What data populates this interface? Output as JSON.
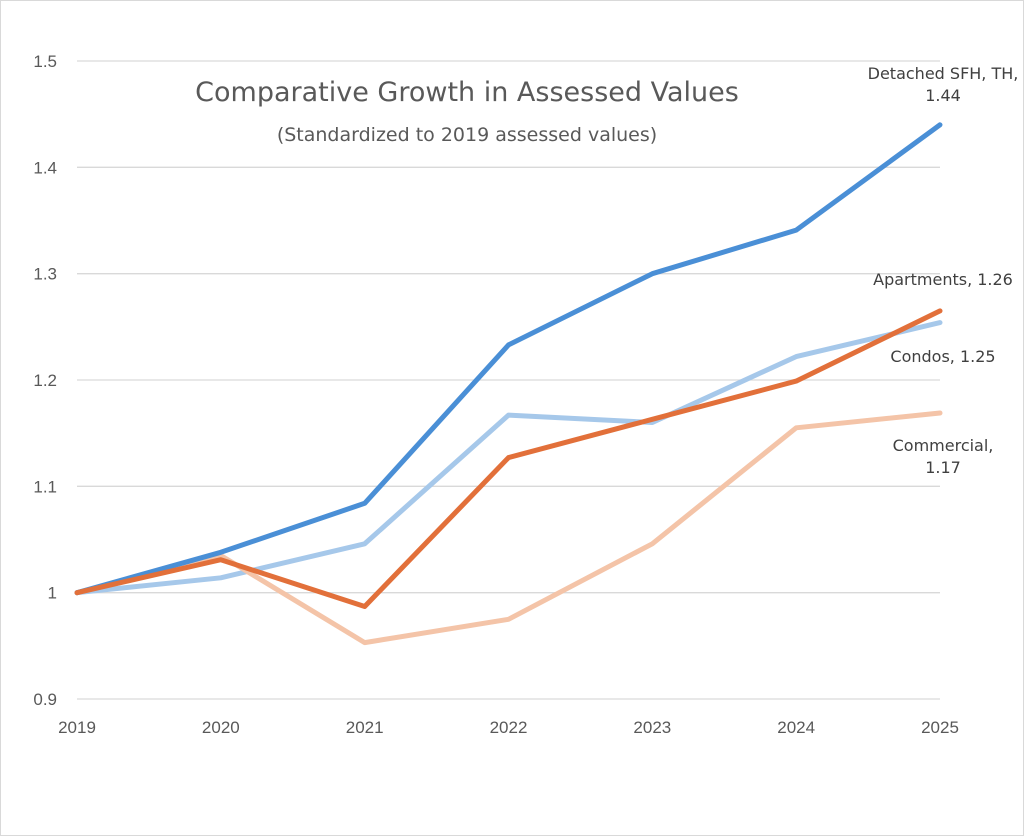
{
  "chart_data": {
    "type": "line",
    "title": "Comparative Growth in Assessed Values",
    "subtitle": "(Standardized to 2019 assessed values)",
    "xlabel": "",
    "ylabel": "",
    "x": [
      "2019",
      "2020",
      "2021",
      "2022",
      "2023",
      "2024",
      "2025"
    ],
    "ylim": [
      0.9,
      1.5
    ],
    "yticks": [
      0.9,
      1,
      1.1,
      1.2,
      1.3,
      1.4,
      1.5
    ],
    "ytick_labels": [
      "0.9",
      "1",
      "1.1",
      "1.2",
      "1.3",
      "1.4",
      "1.5"
    ],
    "grid": true,
    "legend": "none (end-of-line data labels)",
    "series": [
      {
        "name": "Detached SFH, TH",
        "color": "#4a8fd6",
        "values": [
          1.0,
          1.038,
          1.084,
          1.233,
          1.3,
          1.341,
          1.44
        ],
        "end_label_lines": [
          "Detached SFH, TH,",
          "1.44"
        ]
      },
      {
        "name": "Condos",
        "color": "#a6c8ea",
        "values": [
          1.0,
          1.014,
          1.046,
          1.167,
          1.16,
          1.222,
          1.254
        ],
        "end_label_lines": [
          "Condos, 1.25"
        ]
      },
      {
        "name": "Apartments",
        "color": "#e2703a",
        "values": [
          1.0,
          1.031,
          0.987,
          1.127,
          1.163,
          1.199,
          1.265
        ],
        "end_label_lines": [
          "Apartments, 1.26"
        ]
      },
      {
        "name": "Commercial",
        "color": "#f4c4a8",
        "values": [
          1.0,
          1.035,
          0.953,
          0.975,
          1.046,
          1.155,
          1.169
        ],
        "end_label_lines": [
          "Commercial,",
          "1.17"
        ]
      }
    ]
  }
}
